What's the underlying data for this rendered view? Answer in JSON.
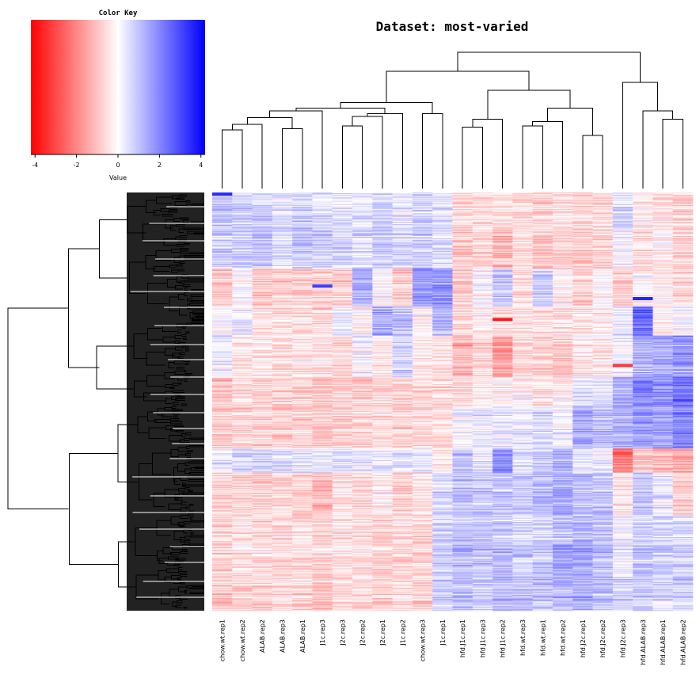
{
  "chart_data": {
    "type": "heatmap",
    "title": "Dataset: most-varied",
    "xlabel": "",
    "ylabel": "",
    "color_key": {
      "title": "Color Key",
      "xlabel": "Value",
      "range": [
        -4.2,
        4.2
      ],
      "ticks": [
        -4,
        -2,
        0,
        2,
        4
      ],
      "tick_labels": [
        "-4",
        "-2",
        "0",
        "2",
        "4"
      ],
      "low_color": "#ff0000",
      "mid_color": "#ffffff",
      "high_color": "#0000ff"
    },
    "columns": [
      "chow.wt.rep1",
      "chow.wt.rep2",
      "ALAB.rep2",
      "ALAB.rep3",
      "ALAB.rep1",
      "J1c.rep3",
      "J2c.rep3",
      "J2c.rep2",
      "J2c.rep1",
      "J1c.rep2",
      "chow.wt.rep3",
      "J1c.rep1",
      "hfd.J1c.rep1",
      "hfd.J1c.rep3",
      "hfd.J1c.rep2",
      "hfd.wt.rep3",
      "hfd.wt.rep1",
      "hfd.wt.rep2",
      "hfd.J2c.rep1",
      "hfd.J2c.rep2",
      "hfd.J2c.rep3",
      "hfd.ALAB.rep3",
      "hfd.ALAB.rep1",
      "hfd.ALAB.rep2"
    ],
    "column_dendrogram": {
      "merges": [
        {
          "a": 0,
          "b": 1,
          "height": 0.43
        },
        {
          "a": "m0",
          "b": 2,
          "height": 0.47
        },
        {
          "a": 3,
          "b": 4,
          "height": 0.44
        },
        {
          "a": "m1",
          "b": "m2",
          "height": 0.52
        },
        {
          "a": "m3",
          "b": 5,
          "height": 0.57
        },
        {
          "a": 6,
          "b": 7,
          "height": 0.46
        },
        {
          "a": "m5",
          "b": 8,
          "height": 0.53
        },
        {
          "a": "m6",
          "b": 9,
          "height": 0.55
        },
        {
          "a": "m4",
          "b": "m7",
          "height": 0.59
        },
        {
          "a": 10,
          "b": 11,
          "height": 0.55
        },
        {
          "a": "m8",
          "b": "m9",
          "height": 0.63
        },
        {
          "a": 12,
          "b": 13,
          "height": 0.45
        },
        {
          "a": "m11",
          "b": 14,
          "height": 0.51
        },
        {
          "a": 15,
          "b": 16,
          "height": 0.46
        },
        {
          "a": "m13",
          "b": 17,
          "height": 0.49
        },
        {
          "a": 18,
          "b": 19,
          "height": 0.39
        },
        {
          "a": "m14",
          "b": "m15",
          "height": 0.59
        },
        {
          "a": "m12",
          "b": "m16",
          "height": 0.72
        },
        {
          "a": "m10",
          "b": "m17",
          "height": 0.86
        },
        {
          "a": 22,
          "b": 23,
          "height": 0.51
        },
        {
          "a": 21,
          "b": "m19",
          "height": 0.57
        },
        {
          "a": 20,
          "b": "m20",
          "height": 0.78
        },
        {
          "a": "m18",
          "b": "m21",
          "height": 1.0
        }
      ]
    },
    "row_count_estimate": 500,
    "row_blocks": {
      "description": "approximate mean z-score per column for successive row groups (top to bottom), as displayed",
      "fractions": [
        0.08,
        0.1,
        0.09,
        0.07,
        0.1,
        0.07,
        0.1,
        0.06,
        0.1,
        0.07,
        0.08,
        0.08
      ],
      "means": [
        [
          1.2,
          0.8,
          0.9,
          0.6,
          0.9,
          0.7,
          0.6,
          0.5,
          0.8,
          0.4,
          0.9,
          0.6,
          -0.8,
          -0.6,
          -0.5,
          -0.6,
          -0.7,
          -0.5,
          -0.7,
          -0.5,
          0.8,
          -0.3,
          -0.5,
          -0.8
        ],
        [
          0.8,
          0.9,
          1.0,
          0.7,
          1.1,
          0.9,
          0.8,
          0.6,
          0.9,
          0.7,
          0.8,
          0.7,
          -1.0,
          -0.8,
          -1.2,
          -0.7,
          -1.0,
          -0.9,
          -1.0,
          -0.8,
          0.2,
          -0.6,
          -0.3,
          -0.9
        ],
        [
          -0.9,
          0.1,
          -0.9,
          -0.8,
          -0.8,
          -1.0,
          -0.8,
          1.6,
          0.1,
          -0.9,
          2.0,
          2.0,
          -0.8,
          0.1,
          1.2,
          -0.5,
          1.0,
          -0.3,
          -0.8,
          0.1,
          -0.8,
          -0.1,
          -0.2,
          -0.6
        ],
        [
          0.1,
          0.3,
          -0.6,
          -0.5,
          -0.6,
          -0.7,
          0.5,
          -0.2,
          1.6,
          1.2,
          -0.2,
          1.4,
          -0.6,
          -0.3,
          -0.5,
          -0.4,
          -0.6,
          -0.5,
          -0.5,
          -0.3,
          0.4,
          2.7,
          -0.2,
          0.1
        ],
        [
          0.3,
          -0.4,
          -0.5,
          -0.6,
          -0.4,
          -0.4,
          -0.8,
          0.2,
          -0.4,
          0.8,
          -0.2,
          -0.6,
          -1.4,
          -0.8,
          -1.8,
          -0.7,
          -0.9,
          -1.0,
          -0.4,
          -0.3,
          0.2,
          1.4,
          1.5,
          1.8
        ],
        [
          -1.2,
          -0.6,
          -0.8,
          -0.8,
          -0.9,
          -1.0,
          -0.9,
          -1.1,
          -0.8,
          -1.0,
          -0.7,
          -0.7,
          -0.7,
          -0.4,
          -0.3,
          -0.2,
          -0.6,
          -0.3,
          0.6,
          0.4,
          1.4,
          2.2,
          2.0,
          2.6
        ],
        [
          -1.0,
          -0.8,
          -0.8,
          -0.9,
          -0.8,
          -1.0,
          -0.8,
          -0.8,
          -0.7,
          -0.9,
          -0.7,
          -0.6,
          0.1,
          0.4,
          0.3,
          0.3,
          0.6,
          0.2,
          1.5,
          1.2,
          1.4,
          1.8,
          1.6,
          2.2
        ],
        [
          0.5,
          0.8,
          0.7,
          0.6,
          0.5,
          0.4,
          0.7,
          0.5,
          0.4,
          0.5,
          0.6,
          -0.3,
          1.2,
          0.6,
          2.0,
          0.6,
          1.0,
          1.4,
          0.5,
          0.3,
          -2.4,
          -1.0,
          -1.2,
          -1.4
        ],
        [
          -0.8,
          -0.7,
          -0.9,
          -0.8,
          -0.8,
          -1.2,
          -0.5,
          -0.7,
          -0.4,
          -0.8,
          -0.5,
          0.8,
          1.2,
          1.0,
          1.0,
          1.0,
          1.2,
          1.6,
          1.1,
          1.1,
          -0.6,
          1.0,
          0.4,
          -0.9
        ],
        [
          -0.8,
          -0.6,
          -0.7,
          -0.6,
          -0.7,
          -0.9,
          -0.5,
          -0.6,
          -0.8,
          -0.6,
          -0.9,
          0.7,
          1.0,
          1.0,
          0.9,
          0.7,
          0.8,
          1.1,
          1.3,
          1.1,
          0.2,
          0.9,
          0.8,
          0.7
        ],
        [
          -0.9,
          -0.6,
          -0.5,
          -0.8,
          -0.8,
          -0.8,
          -0.6,
          -0.5,
          -0.9,
          -0.8,
          -0.8,
          0.9,
          1.2,
          1.1,
          1.3,
          1.0,
          1.0,
          1.5,
          1.6,
          1.2,
          0.3,
          1.0,
          0.8,
          0.9
        ],
        [
          -0.9,
          -0.8,
          -0.8,
          -0.6,
          -0.8,
          -1.0,
          -0.6,
          -0.7,
          -0.8,
          -0.6,
          -0.9,
          0.8,
          1.1,
          1.0,
          1.2,
          1.2,
          1.1,
          1.3,
          1.5,
          1.2,
          0.8,
          1.0,
          0.7,
          1.0
        ]
      ]
    },
    "highlights": [
      {
        "column": "chow.wt.rep1",
        "row_fraction": 0.0,
        "value": 3.5
      },
      {
        "column": "hfd.ALAB.rep3",
        "row_fraction": 0.25,
        "value": 3.6
      },
      {
        "column": "J1c.rep3",
        "row_fraction": 0.22,
        "value": 3.2
      },
      {
        "column": "hfd.J1c.rep2",
        "row_fraction": 0.3,
        "value": -3.8
      },
      {
        "column": "hfd.J2c.rep3",
        "row_fraction": 0.41,
        "value": -3.3
      },
      {
        "column": "hfd.J2c.rep3",
        "row_fraction": 0.62,
        "value": -3.0
      }
    ],
    "legend": "top-left",
    "grid": false
  }
}
